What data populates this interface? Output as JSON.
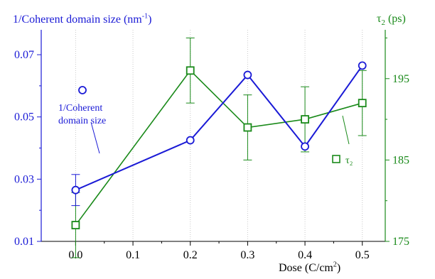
{
  "chart_data": {
    "type": "line",
    "xlabel": "Dose (C/cm²)",
    "ylabel_left": "1/Coherent domain size (nm⁻¹)",
    "ylabel_right": "τ₂ (ps)",
    "xlim": [
      -0.06,
      0.54
    ],
    "ylim_left": [
      0.01,
      0.078
    ],
    "ylim_right": [
      175,
      201
    ],
    "x_ticks": [
      "0.0",
      "0.1",
      "0.2",
      "0.3",
      "0.4",
      "0.5"
    ],
    "y_left_ticks": [
      "0.01",
      "0.03",
      "0.05",
      "0.07"
    ],
    "y_right_ticks": [
      "175",
      "185",
      "195"
    ],
    "grid": "vertical dotted at x ticks",
    "colors": {
      "left": "#1a1ad6",
      "right": "#1a8a1a",
      "axis": "#000000"
    },
    "series": [
      {
        "name": "1/Coherent domain size",
        "axis": "left",
        "marker": "circle",
        "x": [
          0.0,
          0.2,
          0.3,
          0.4,
          0.5
        ],
        "y": [
          0.0265,
          0.0425,
          0.0635,
          0.0405,
          0.0665
        ],
        "yerr": [
          0.005,
          0,
          0,
          0,
          0
        ]
      },
      {
        "name": "τ₂",
        "axis": "right",
        "marker": "square",
        "x": [
          0.0,
          0.2,
          0.3,
          0.4,
          0.5
        ],
        "y": [
          177.0,
          196.0,
          189.0,
          190.0,
          192.0
        ],
        "yerr": [
          4.0,
          4.0,
          4.0,
          4.0,
          4.0
        ]
      }
    ],
    "legend_left_lines": [
      "1/Coherent",
      "domain size"
    ],
    "legend_right_label": "τ₂"
  }
}
